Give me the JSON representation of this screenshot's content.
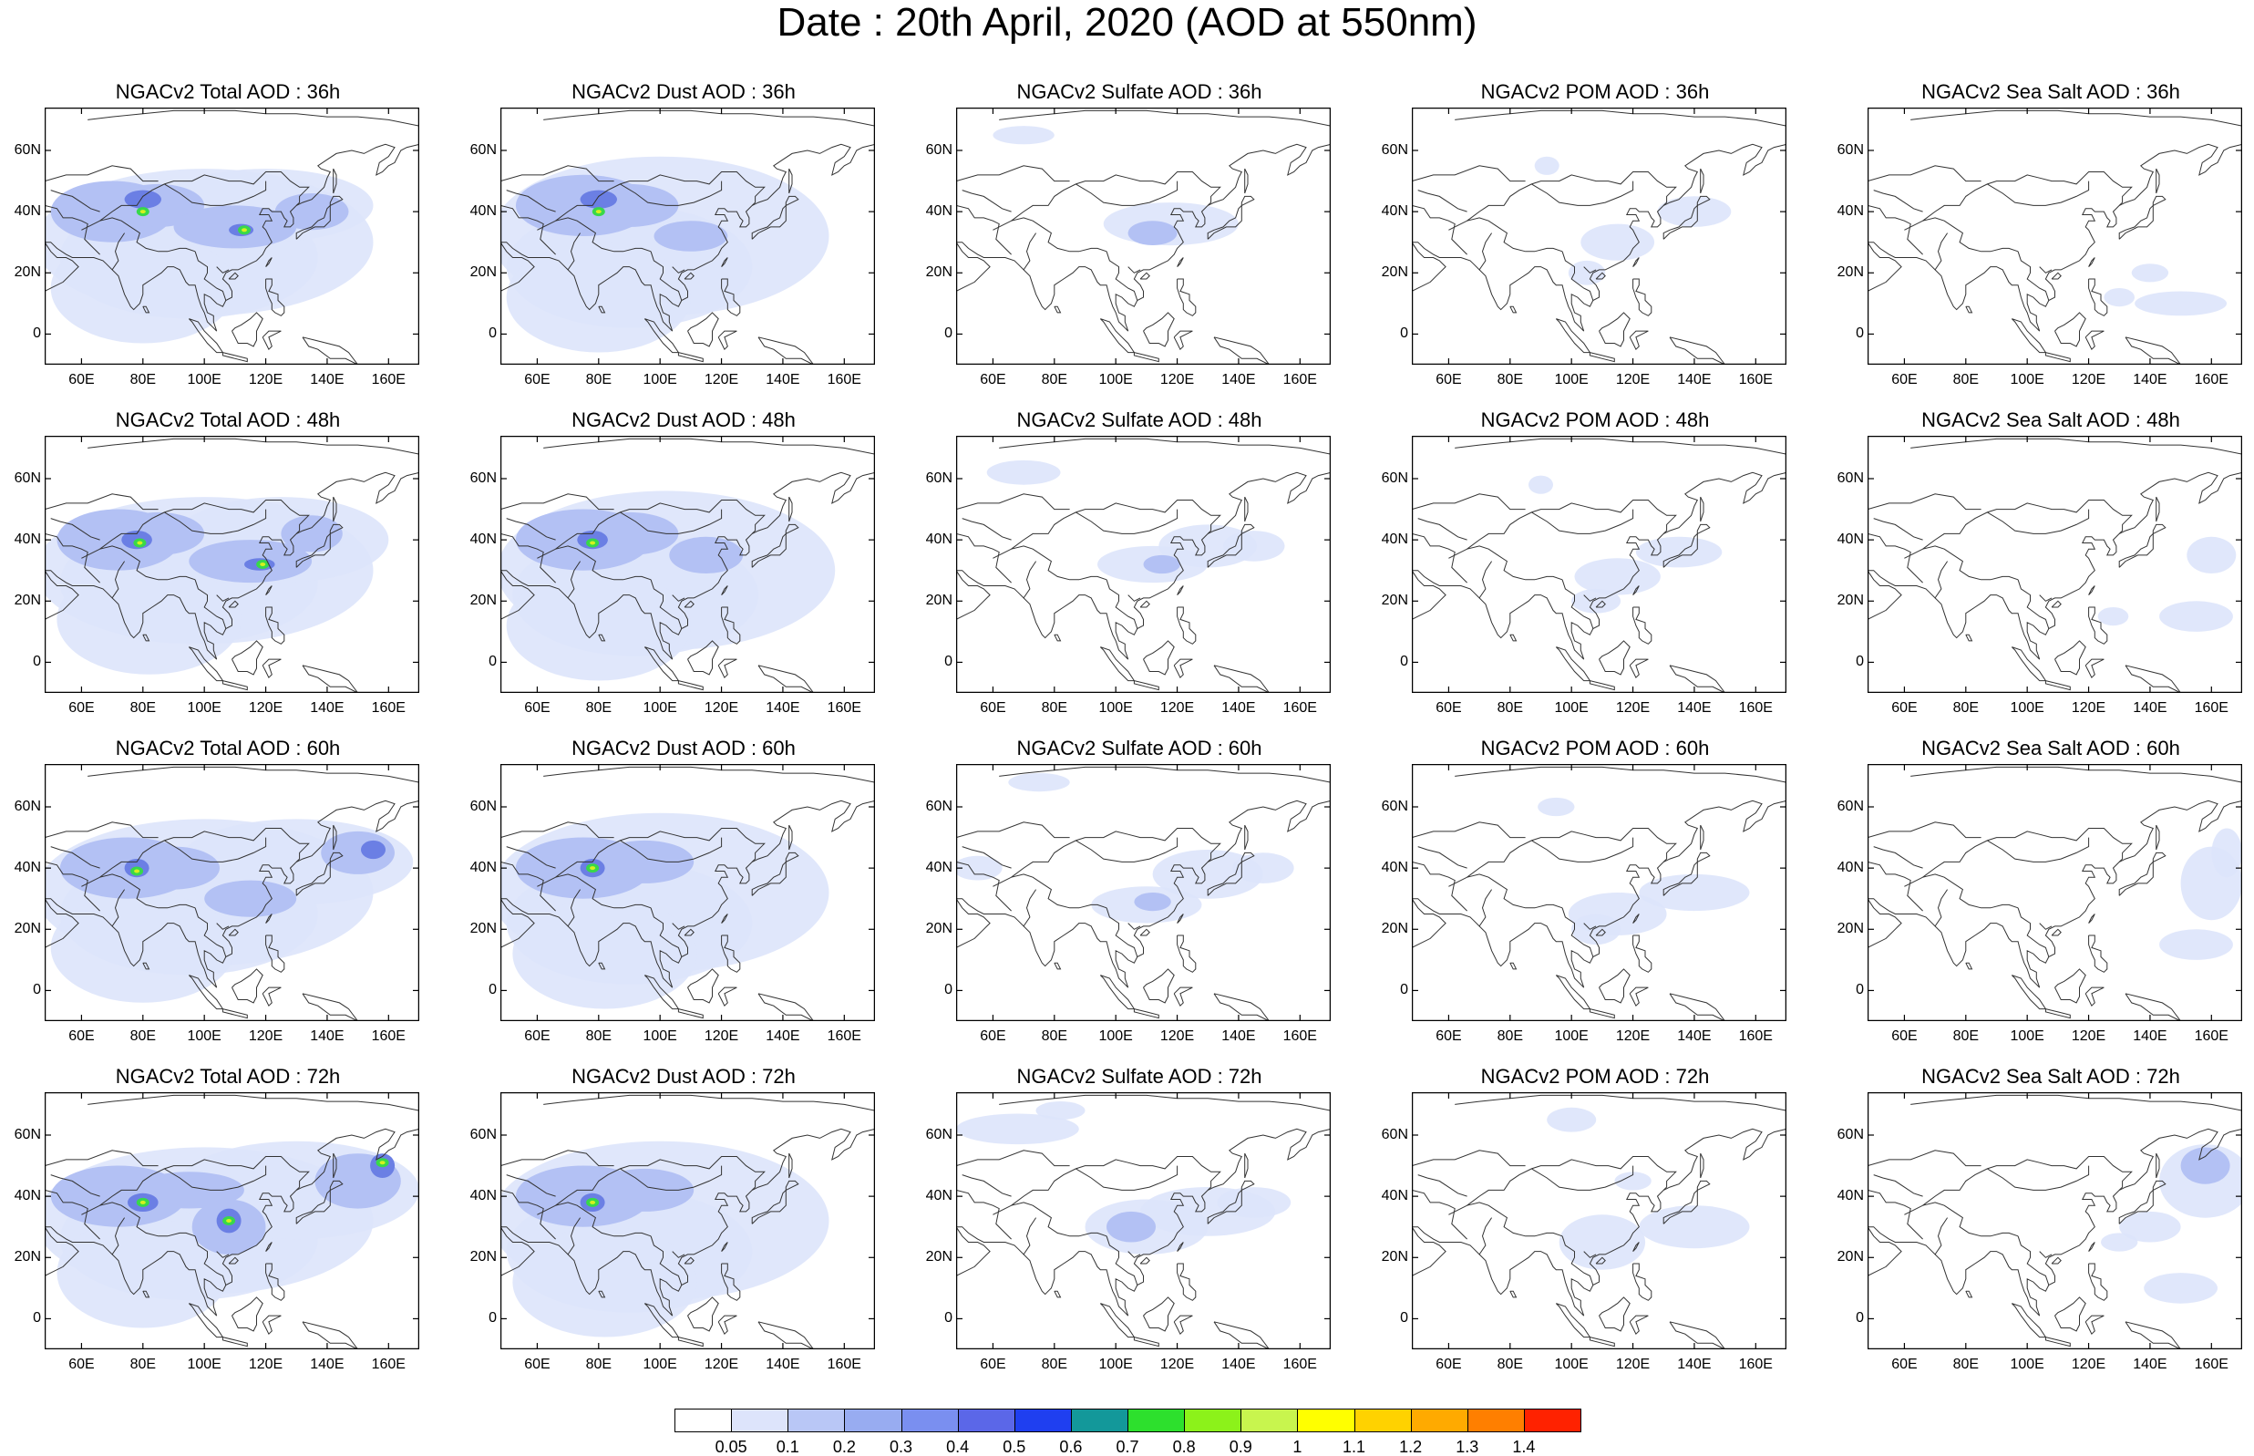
{
  "title": "Date : 20th April, 2020 (AOD at 550nm)",
  "colors": {
    "coast": "#333333",
    "frame": "#000000",
    "background": "#ffffff",
    "shade_light": "#dde4fb",
    "shade_mid": "#b3c1f4",
    "shade_dark": "#8a9cec",
    "shade_strong": "#6b7fe4",
    "hotspot": "#38d84a",
    "hotspot_core": "#d6f01e"
  },
  "axes": {
    "y_ticks": [
      "60N",
      "40N",
      "20N",
      "0"
    ],
    "x_ticks": [
      "60E",
      "80E",
      "100E",
      "120E",
      "140E",
      "160E"
    ],
    "lon_range": [
      48,
      170
    ],
    "lat_range": [
      -10,
      74
    ]
  },
  "panels": [
    {
      "title": "NGACv2 Total AOD : 36h",
      "aerosol": "total",
      "hour": 36
    },
    {
      "title": "NGACv2 Dust AOD : 36h",
      "aerosol": "dust",
      "hour": 36
    },
    {
      "title": "NGACv2 Sulfate AOD : 36h",
      "aerosol": "sulfate",
      "hour": 36
    },
    {
      "title": "NGACv2 POM AOD : 36h",
      "aerosol": "pom",
      "hour": 36
    },
    {
      "title": "NGACv2 Sea Salt AOD : 36h",
      "aerosol": "seasalt",
      "hour": 36
    },
    {
      "title": "NGACv2 Total AOD : 48h",
      "aerosol": "total",
      "hour": 48
    },
    {
      "title": "NGACv2 Dust AOD : 48h",
      "aerosol": "dust",
      "hour": 48
    },
    {
      "title": "NGACv2 Sulfate AOD : 48h",
      "aerosol": "sulfate",
      "hour": 48
    },
    {
      "title": "NGACv2 POM AOD : 48h",
      "aerosol": "pom",
      "hour": 48
    },
    {
      "title": "NGACv2 Sea Salt AOD : 48h",
      "aerosol": "seasalt",
      "hour": 48
    },
    {
      "title": "NGACv2 Total AOD : 60h",
      "aerosol": "total",
      "hour": 60
    },
    {
      "title": "NGACv2 Dust AOD : 60h",
      "aerosol": "dust",
      "hour": 60
    },
    {
      "title": "NGACv2 Sulfate AOD : 60h",
      "aerosol": "sulfate",
      "hour": 60
    },
    {
      "title": "NGACv2 POM AOD : 60h",
      "aerosol": "pom",
      "hour": 60
    },
    {
      "title": "NGACv2 Sea Salt AOD : 60h",
      "aerosol": "seasalt",
      "hour": 60
    },
    {
      "title": "NGACv2 Total AOD : 72h",
      "aerosol": "total",
      "hour": 72
    },
    {
      "title": "NGACv2 Dust AOD : 72h",
      "aerosol": "dust",
      "hour": 72
    },
    {
      "title": "NGACv2 Sulfate AOD : 72h",
      "aerosol": "sulfate",
      "hour": 72
    },
    {
      "title": "NGACv2 POM AOD : 72h",
      "aerosol": "pom",
      "hour": 72
    },
    {
      "title": "NGACv2 Sea Salt  AOD : 72h",
      "aerosol": "seasalt",
      "hour": 72
    }
  ],
  "colorbar": {
    "colors": [
      "#ffffff",
      "#dde4fb",
      "#b9c7f6",
      "#98acf1",
      "#7a8ff0",
      "#5b67e8",
      "#1f3ff0",
      "#13989a",
      "#2de02d",
      "#8cf21a",
      "#c8f54e",
      "#ffff00",
      "#ffd200",
      "#ffaa00",
      "#ff7f00",
      "#ff2200"
    ],
    "labels": [
      "0.05",
      "0.1",
      "0.2",
      "0.3",
      "0.4",
      "0.5",
      "0.6",
      "0.7",
      "0.8",
      "0.9",
      "1",
      "1.1",
      "1.2",
      "1.3",
      "1.4"
    ]
  }
}
